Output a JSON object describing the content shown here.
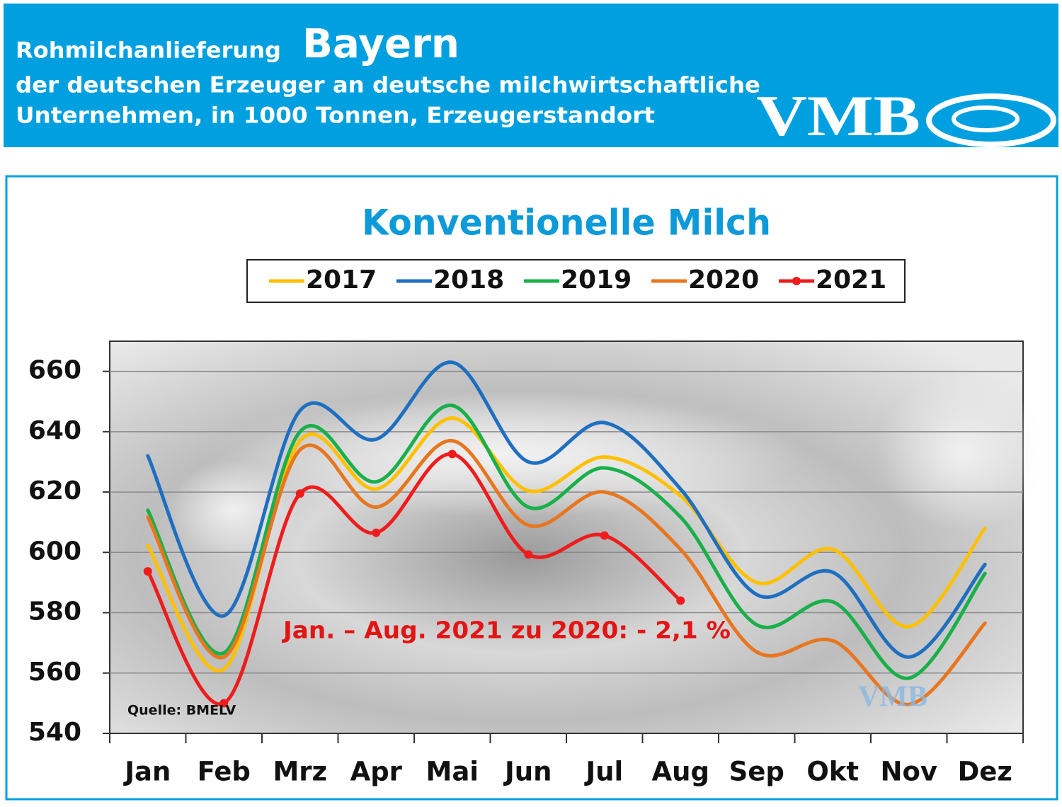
{
  "header": {
    "title_prefix": "Rohmilchanlieferung",
    "title_region": "Bayern",
    "subtitle_line1": "der deutschen Erzeuger an deutsche milchwirtschaftliche",
    "subtitle_line2": "Unternehmen, in 1000 Tonnen, Erzeugerstandort",
    "logo": "VMB"
  },
  "chart_data": {
    "type": "line",
    "title": "Konventionelle Milch",
    "categories": [
      "Jan",
      "Feb",
      "Mrz",
      "Apr",
      "Mai",
      "Jun",
      "Jul",
      "Aug",
      "Sep",
      "Okt",
      "Nov",
      "Dez"
    ],
    "series": [
      {
        "name": "2017",
        "color": "#ffc000",
        "values": [
          602.3,
          561.3,
          637,
          621,
          644.5,
          620.4,
          631.6,
          618.7,
          590,
          601,
          575.4,
          608
        ]
      },
      {
        "name": "2018",
        "color": "#1f6fc1",
        "values": [
          632,
          579,
          647,
          637.5,
          663,
          630,
          643,
          621,
          586,
          593.4,
          565.3,
          596
        ]
      },
      {
        "name": "2019",
        "color": "#19b04a",
        "values": [
          614,
          566.7,
          640,
          623.4,
          648.7,
          615,
          628,
          611.7,
          576,
          583.6,
          558.3,
          593
        ]
      },
      {
        "name": "2020",
        "color": "#e8761e",
        "values": [
          611.7,
          565.3,
          634,
          615,
          637,
          609,
          620,
          601,
          567,
          570.7,
          549.6,
          576.5
        ]
      },
      {
        "name": "2021",
        "color": "#ee1c1c",
        "markers": true,
        "values": [
          593.7,
          550,
          619.5,
          606.5,
          632.6,
          599.3,
          605.6,
          584,
          null,
          null,
          null,
          null
        ]
      }
    ],
    "ylim": [
      540,
      670
    ],
    "yticks": [
      540,
      560,
      580,
      600,
      620,
      640,
      660
    ],
    "grid": true,
    "legend": "top",
    "annotations": [
      "Jan. – Aug. 2021 zu 2020: - 2,1 %"
    ],
    "source": "Quelle:  BMELV"
  }
}
